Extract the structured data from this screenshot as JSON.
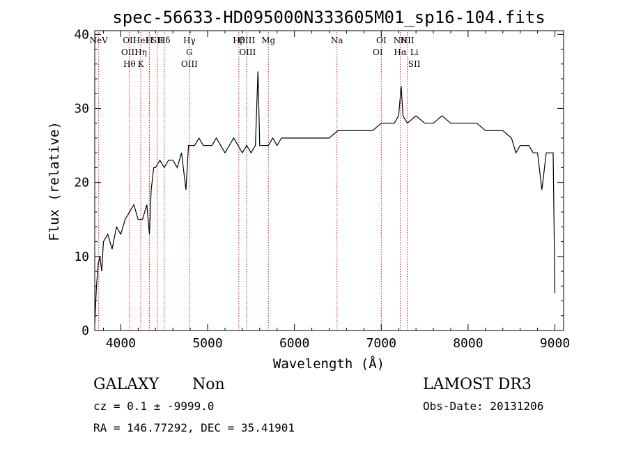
{
  "chart_data": {
    "type": "line",
    "title": "spec-56633-HD095000N333605M01_sp16-104.fits",
    "xlabel": "Wavelength (Å)",
    "ylabel": "Flux (relative)",
    "xlim": [
      3700,
      9100
    ],
    "ylim": [
      0,
      40.5
    ],
    "xticks": [
      4000,
      5000,
      6000,
      7000,
      8000,
      9000
    ],
    "yticks": [
      0,
      10,
      20,
      30,
      40
    ],
    "series": [
      {
        "x": [
          3700,
          3720,
          3740,
          3760,
          3780,
          3800,
          3850,
          3900,
          3950,
          4000,
          4050,
          4100,
          4150,
          4200,
          4250,
          4300,
          4330,
          4350,
          4380,
          4400,
          4450,
          4500,
          4550,
          4600,
          4650,
          4700,
          4750,
          4780,
          4800,
          4850,
          4900,
          4950,
          5000,
          5050,
          5100,
          5150,
          5200,
          5250,
          5300,
          5350,
          5400,
          5450,
          5500,
          5550,
          5580,
          5600,
          5650,
          5700,
          5750,
          5800,
          5850,
          5900,
          5950,
          6000,
          6100,
          6200,
          6300,
          6400,
          6500,
          6600,
          6700,
          6800,
          6900,
          7000,
          7100,
          7150,
          7200,
          7230,
          7250,
          7300,
          7400,
          7500,
          7600,
          7700,
          7800,
          7900,
          8000,
          8100,
          8200,
          8300,
          8400,
          8500,
          8550,
          8600,
          8650,
          8700,
          8750,
          8800,
          8850,
          8900,
          8950,
          8980,
          9000
        ],
        "y": [
          1,
          6,
          9,
          10,
          8,
          12,
          13,
          11,
          14,
          13,
          15,
          16,
          17,
          15,
          15,
          17,
          13,
          19,
          22,
          22,
          23,
          22,
          23,
          23,
          22,
          24,
          19,
          25,
          25,
          25,
          26,
          25,
          25,
          25,
          26,
          25,
          24,
          25,
          26,
          25,
          24,
          25,
          24,
          25,
          35,
          25,
          25,
          25,
          26,
          25,
          26,
          26,
          26,
          26,
          26,
          26,
          26,
          26,
          27,
          27,
          27,
          27,
          27,
          28,
          28,
          28,
          29,
          33,
          29,
          28,
          29,
          28,
          28,
          29,
          28,
          28,
          28,
          28,
          27,
          27,
          27,
          26,
          24,
          25,
          25,
          25,
          24,
          24,
          19,
          24,
          24,
          24,
          5
        ]
      }
    ],
    "spectral_lines": [
      {
        "label": "NeV",
        "x": 3746
      },
      {
        "label": "OII",
        "x": 4100
      },
      {
        "label": "OIII",
        "x": 4100
      },
      {
        "label": "Hθ",
        "x": 4100
      },
      {
        "label": "HeI",
        "x": 4230
      },
      {
        "label": "Hη",
        "x": 4230
      },
      {
        "label": "K",
        "x": 4230
      },
      {
        "label": "H",
        "x": 4330
      },
      {
        "label": "SII",
        "x": 4420
      },
      {
        "label": "Hδ",
        "x": 4500
      },
      {
        "label": "Hγ",
        "x": 4790
      },
      {
        "label": "G",
        "x": 4790
      },
      {
        "label": "OIII",
        "x": 4790
      },
      {
        "label": "Hβ",
        "x": 5360
      },
      {
        "label": "OIII",
        "x": 5450
      },
      {
        "label": "OIII",
        "x": 5460
      },
      {
        "label": "Mg",
        "x": 5700
      },
      {
        "label": "Na",
        "x": 6490
      },
      {
        "label": "OI",
        "x": 7000
      },
      {
        "label": "OI",
        "x": 6960
      },
      {
        "label": "NII",
        "x": 7220
      },
      {
        "label": "NII",
        "x": 7300
      },
      {
        "label": "Hα",
        "x": 7220
      },
      {
        "label": "Li",
        "x": 7380
      },
      {
        "label": "SII",
        "x": 7380
      }
    ],
    "line_color": "#000000",
    "marker_color": "#cc0000",
    "grid": false
  },
  "info": {
    "object_class": "GALAXY",
    "object_subclass": "Non",
    "survey": "LAMOST DR3",
    "cz_text": "cz = 0.1 ± -9999.0",
    "obs_date_text": "Obs-Date: 20131206",
    "coords_text": "RA = 146.77292, DEC =  35.41901"
  }
}
